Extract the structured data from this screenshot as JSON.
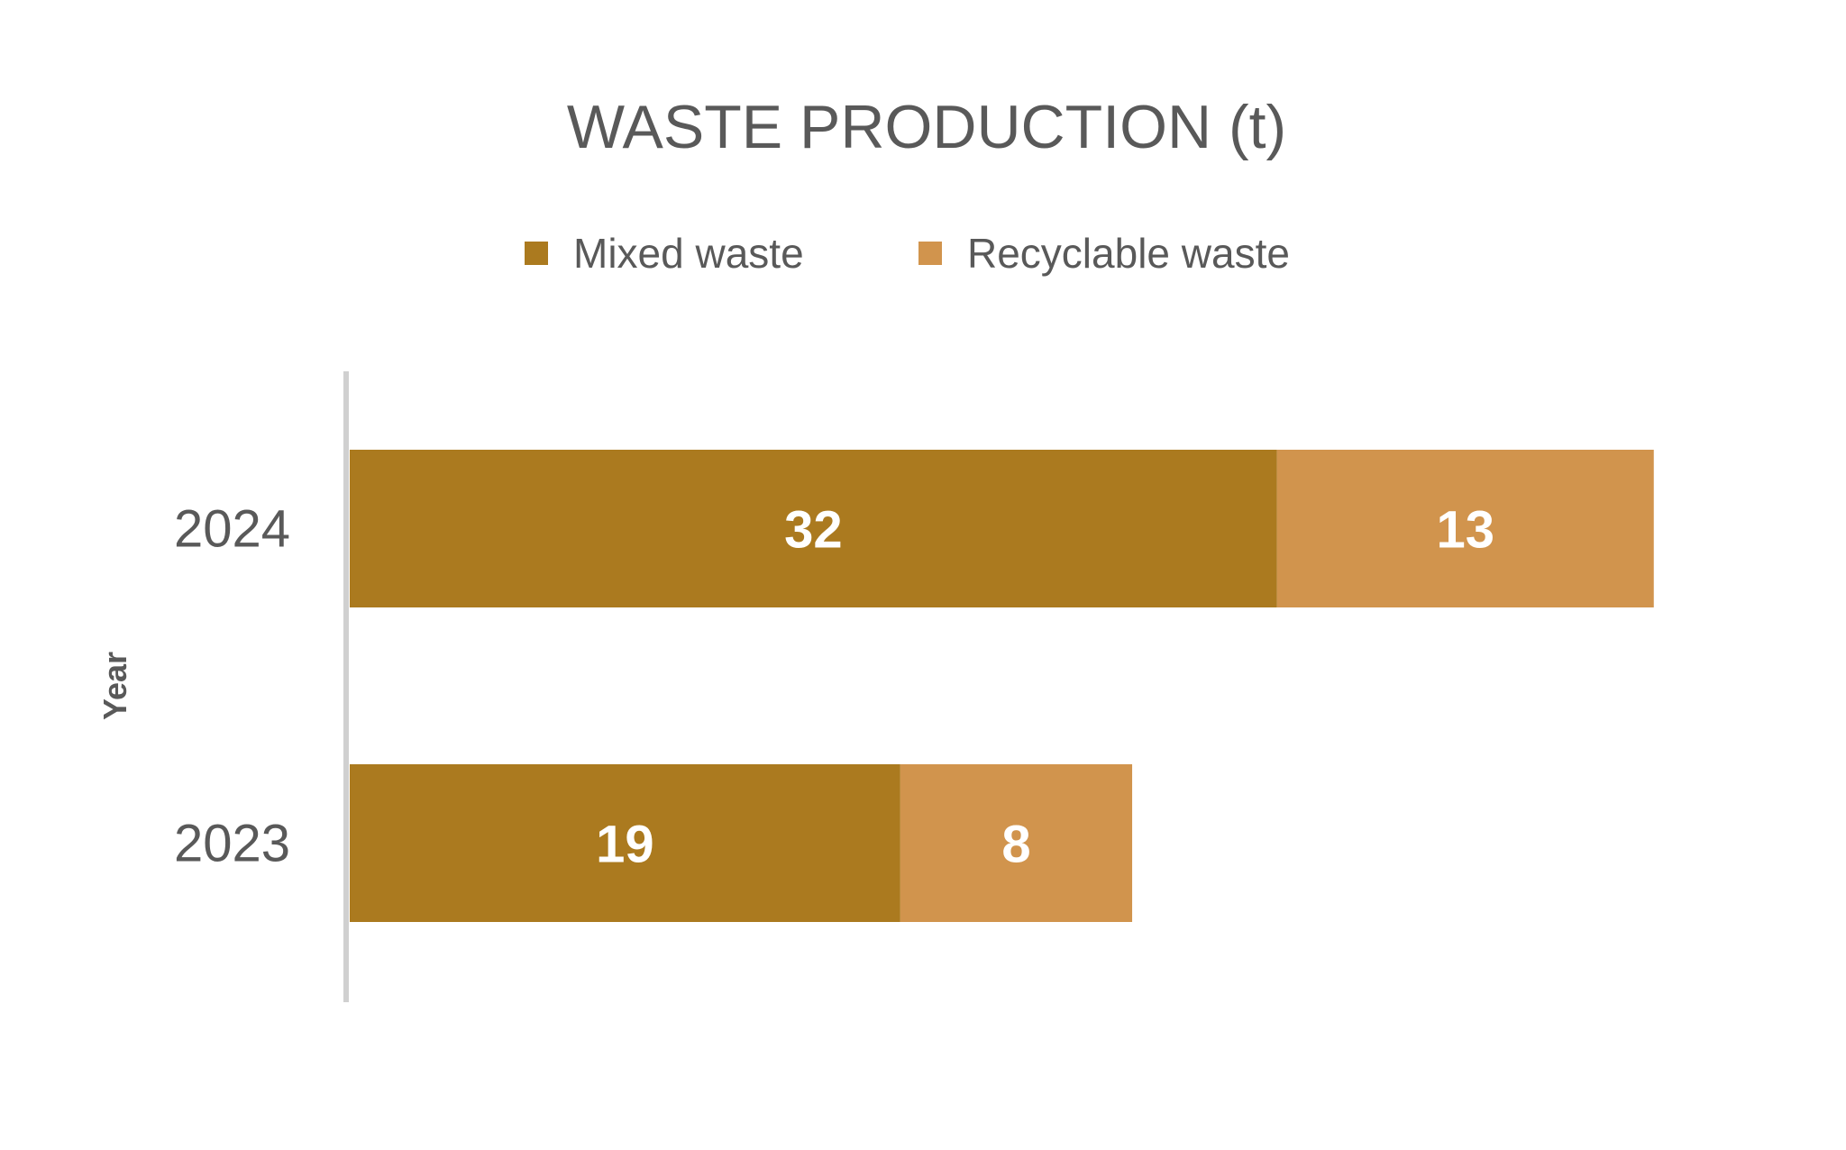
{
  "chart_data": {
    "type": "bar",
    "orientation": "horizontal",
    "stacked": true,
    "title": "WASTE PRODUCTION (t)",
    "ylabel": "Year",
    "xlabel": "",
    "categories": [
      "2024",
      "2023"
    ],
    "series": [
      {
        "name": "Mixed waste",
        "values": [
          32,
          19
        ],
        "color": "#AB7A1F"
      },
      {
        "name": "Recyclable waste",
        "values": [
          13,
          8
        ],
        "color": "#D1944D"
      }
    ],
    "xlim": [
      0,
      45
    ],
    "grid": false,
    "legend": "top",
    "data_labels": true
  },
  "style": {
    "text_color": "#595959",
    "axis_color": "#D0D0D0",
    "label_color": "#FFFFFF",
    "background": "#FFFFFF"
  }
}
